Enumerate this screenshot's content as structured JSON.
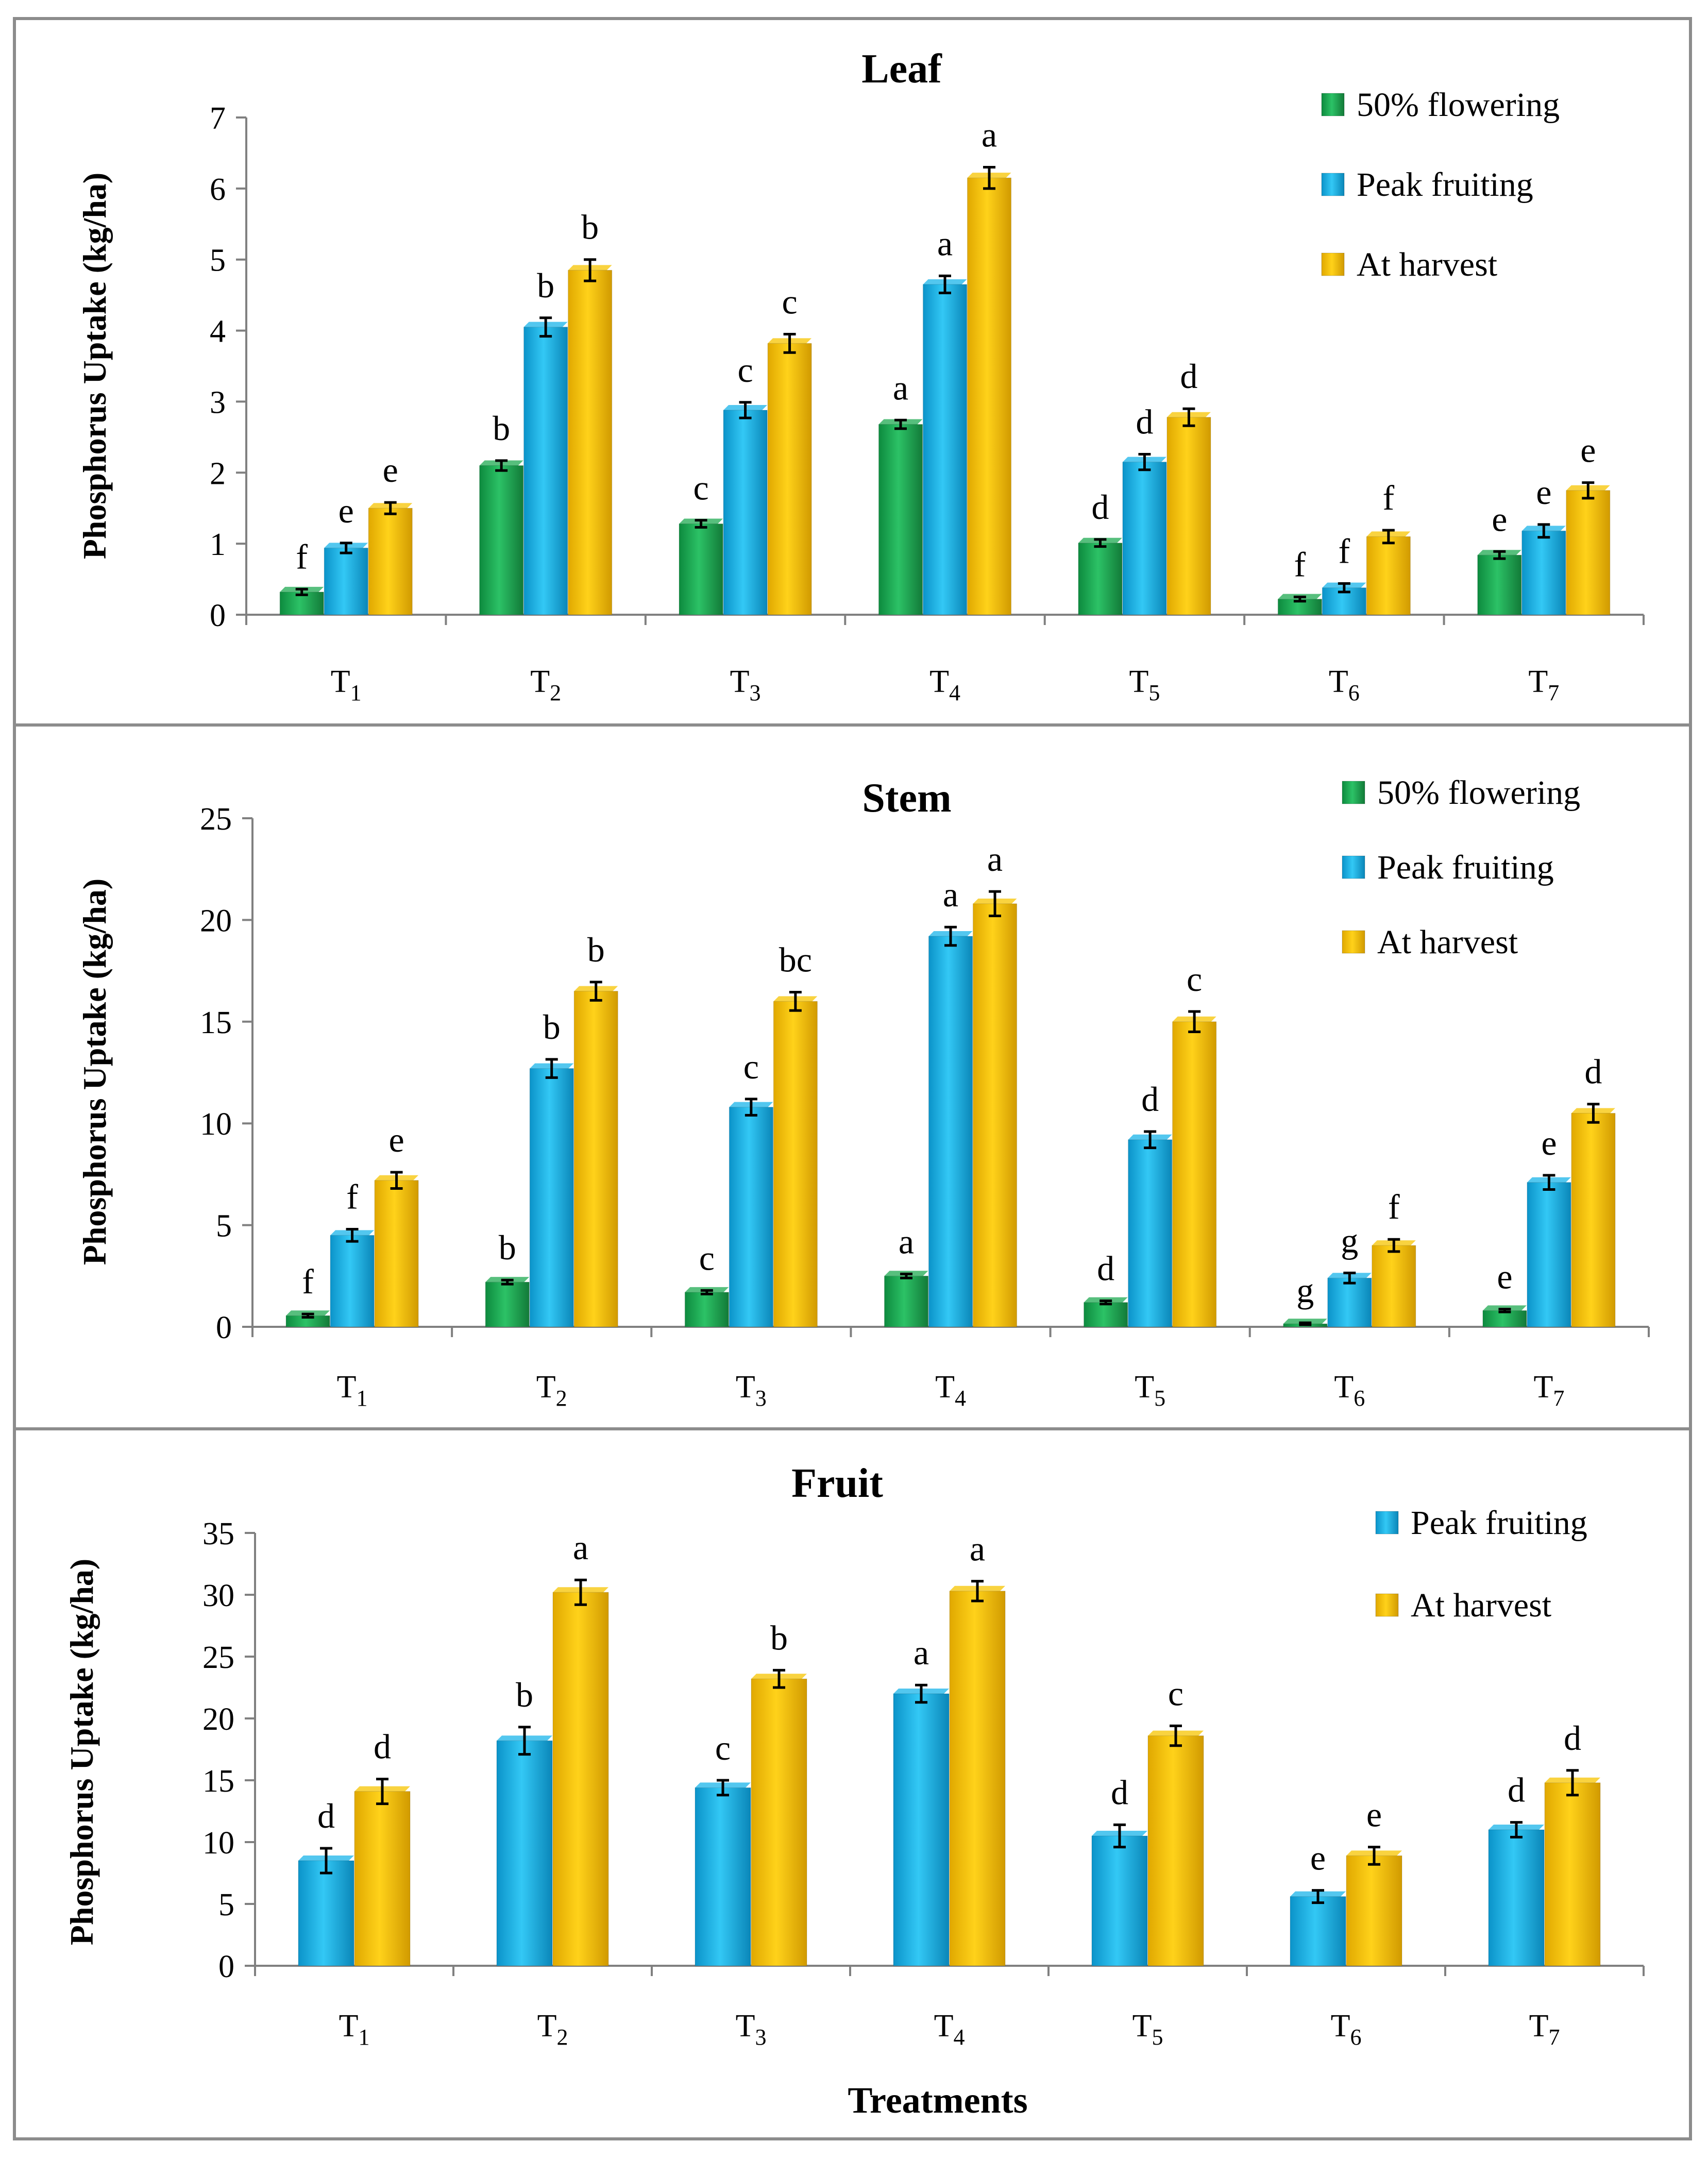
{
  "figure": {
    "xlabel": "Treatments"
  },
  "colors": {
    "flowering": "#1faa52",
    "peak": "#19b4ea",
    "harvest": "#f7c400",
    "frame": "#8c8c8c",
    "axis": "#808080",
    "text": "#000000"
  },
  "chart_data": [
    {
      "type": "bar",
      "title": "Leaf",
      "ylabel": "Phosphorus Uptake (kg/ha)",
      "xlabel": "",
      "categories": [
        {
          "base": "T",
          "sub": "1"
        },
        {
          "base": "T",
          "sub": "2"
        },
        {
          "base": "T",
          "sub": "3"
        },
        {
          "base": "T",
          "sub": "4"
        },
        {
          "base": "T",
          "sub": "5"
        },
        {
          "base": "T",
          "sub": "6"
        },
        {
          "base": "T",
          "sub": "7"
        }
      ],
      "ylim": [
        0,
        7
      ],
      "yticks": [
        0,
        1,
        2,
        3,
        4,
        5,
        6,
        7
      ],
      "legend_position": "top-right",
      "series": [
        {
          "name": "50% flowering",
          "color_key": "flowering",
          "values": [
            0.32,
            2.1,
            1.28,
            2.68,
            1.01,
            0.22,
            0.84
          ],
          "errors": [
            0.04,
            0.07,
            0.05,
            0.06,
            0.05,
            0.03,
            0.05
          ],
          "letters": [
            "f",
            "b",
            "c",
            "a",
            "d",
            "f",
            "e"
          ]
        },
        {
          "name": "Peak fruiting",
          "color_key": "peak",
          "values": [
            0.94,
            4.05,
            2.88,
            4.65,
            2.15,
            0.38,
            1.18
          ],
          "errors": [
            0.07,
            0.13,
            0.11,
            0.12,
            0.11,
            0.06,
            0.09
          ],
          "letters": [
            "e",
            "b",
            "c",
            "a",
            "d",
            "f",
            "e"
          ]
        },
        {
          "name": "At harvest",
          "color_key": "harvest",
          "values": [
            1.5,
            4.85,
            3.82,
            6.15,
            2.78,
            1.1,
            1.75
          ],
          "errors": [
            0.08,
            0.15,
            0.13,
            0.15,
            0.12,
            0.09,
            0.11
          ],
          "letters": [
            "e",
            "b",
            "c",
            "a",
            "d",
            "f",
            "e"
          ]
        }
      ]
    },
    {
      "type": "bar",
      "title": "Stem",
      "ylabel": "Phosphorus Uptake (kg/ha)",
      "xlabel": "",
      "categories": [
        {
          "base": "T",
          "sub": "1"
        },
        {
          "base": "T",
          "sub": "2"
        },
        {
          "base": "T",
          "sub": "3"
        },
        {
          "base": "T",
          "sub": "4"
        },
        {
          "base": "T",
          "sub": "5"
        },
        {
          "base": "T",
          "sub": "6"
        },
        {
          "base": "T",
          "sub": "7"
        }
      ],
      "ylim": [
        0,
        25
      ],
      "yticks": [
        0,
        5,
        10,
        15,
        20,
        25
      ],
      "legend_position": "top-right",
      "series": [
        {
          "name": "50% flowering",
          "color_key": "flowering",
          "values": [
            0.55,
            2.2,
            1.7,
            2.5,
            1.2,
            0.15,
            0.8
          ],
          "errors": [
            0.08,
            0.1,
            0.09,
            0.1,
            0.08,
            0.05,
            0.07
          ],
          "letters": [
            "f",
            "b",
            "c",
            "a",
            "d",
            "g",
            "e"
          ]
        },
        {
          "name": "Peak fruiting",
          "color_key": "peak",
          "values": [
            4.5,
            12.7,
            10.8,
            19.2,
            9.2,
            2.4,
            7.1
          ],
          "errors": [
            0.3,
            0.45,
            0.4,
            0.45,
            0.4,
            0.25,
            0.35
          ],
          "letters": [
            "f",
            "b",
            "c",
            "a",
            "d",
            "g",
            "e"
          ]
        },
        {
          "name": "At harvest",
          "color_key": "harvest",
          "values": [
            7.2,
            16.5,
            16.0,
            20.8,
            15.0,
            4.0,
            10.5
          ],
          "errors": [
            0.4,
            0.45,
            0.45,
            0.6,
            0.5,
            0.3,
            0.45
          ],
          "letters": [
            "e",
            "b",
            "bc",
            "a",
            "c",
            "f",
            "d"
          ]
        }
      ]
    },
    {
      "type": "bar",
      "title": "Fruit",
      "ylabel": "Phosphorus Uptake (kg/ha)",
      "xlabel": "Treatments",
      "categories": [
        {
          "base": "T",
          "sub": "1"
        },
        {
          "base": "T",
          "sub": "2"
        },
        {
          "base": "T",
          "sub": "3"
        },
        {
          "base": "T",
          "sub": "4"
        },
        {
          "base": "T",
          "sub": "5"
        },
        {
          "base": "T",
          "sub": "6"
        },
        {
          "base": "T",
          "sub": "7"
        }
      ],
      "ylim": [
        0,
        35
      ],
      "yticks": [
        0,
        5,
        10,
        15,
        20,
        25,
        30,
        35
      ],
      "legend_position": "top-right",
      "series": [
        {
          "name": "Peak fruiting",
          "color_key": "peak",
          "values": [
            8.5,
            18.2,
            14.4,
            22.0,
            10.5,
            5.6,
            11.0
          ],
          "errors": [
            1.0,
            1.1,
            0.6,
            0.7,
            0.9,
            0.5,
            0.6
          ],
          "letters": [
            "d",
            "b",
            "c",
            "a",
            "d",
            "e",
            "d"
          ]
        },
        {
          "name": "At harvest",
          "color_key": "harvest",
          "values": [
            14.1,
            30.2,
            23.2,
            30.3,
            18.6,
            8.9,
            14.8
          ],
          "errors": [
            1.0,
            1.0,
            0.7,
            0.8,
            0.8,
            0.7,
            1.0
          ],
          "letters": [
            "d",
            "a",
            "b",
            "a",
            "c",
            "e",
            "d"
          ]
        }
      ]
    }
  ]
}
